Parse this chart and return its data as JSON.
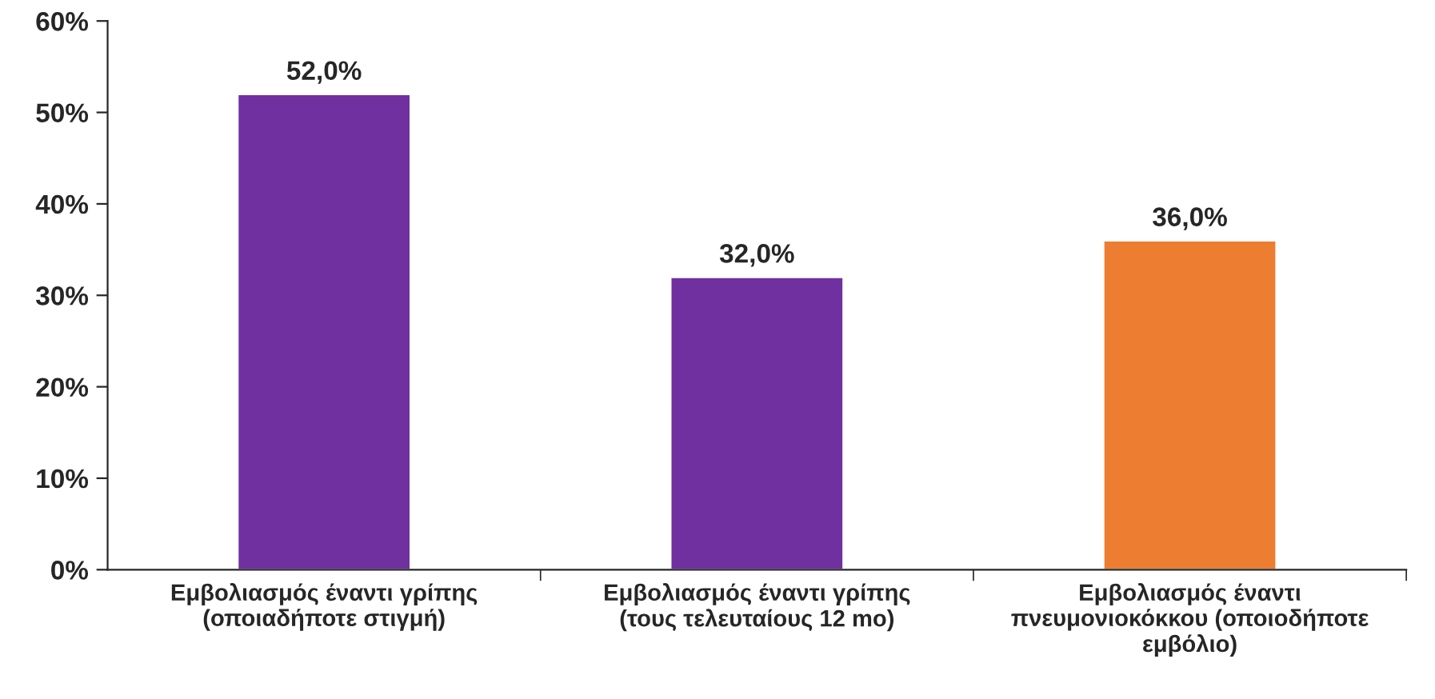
{
  "chart_data": {
    "type": "bar",
    "categories": [
      "Εμβολιασμός έναντι γρίπης\n(οποιαδήποτε στιγμή)",
      "Εμβολιασμός έναντι γρίπης\n(τους τελευταίους 12 mo)",
      "Εμβολιασμός έναντι\nπνευμονιοκόκκου (οποιοδήποτε\nεμβόλιο)"
    ],
    "values": [
      52.0,
      32.0,
      36.0
    ],
    "colors": [
      "#7030a0",
      "#7030a0",
      "#ed7d31"
    ],
    "value_labels": [
      "52,0%",
      "32,0%",
      "36,0%"
    ],
    "ylim": [
      0,
      60
    ],
    "yticks": [
      {
        "value": 0,
        "label": "0%"
      },
      {
        "value": 10,
        "label": "10%"
      },
      {
        "value": 20,
        "label": "20%"
      },
      {
        "value": 30,
        "label": "30%"
      },
      {
        "value": 40,
        "label": "40%"
      },
      {
        "value": 50,
        "label": "50%"
      },
      {
        "value": 60,
        "label": "60%"
      }
    ],
    "grid": false,
    "legend": false
  }
}
